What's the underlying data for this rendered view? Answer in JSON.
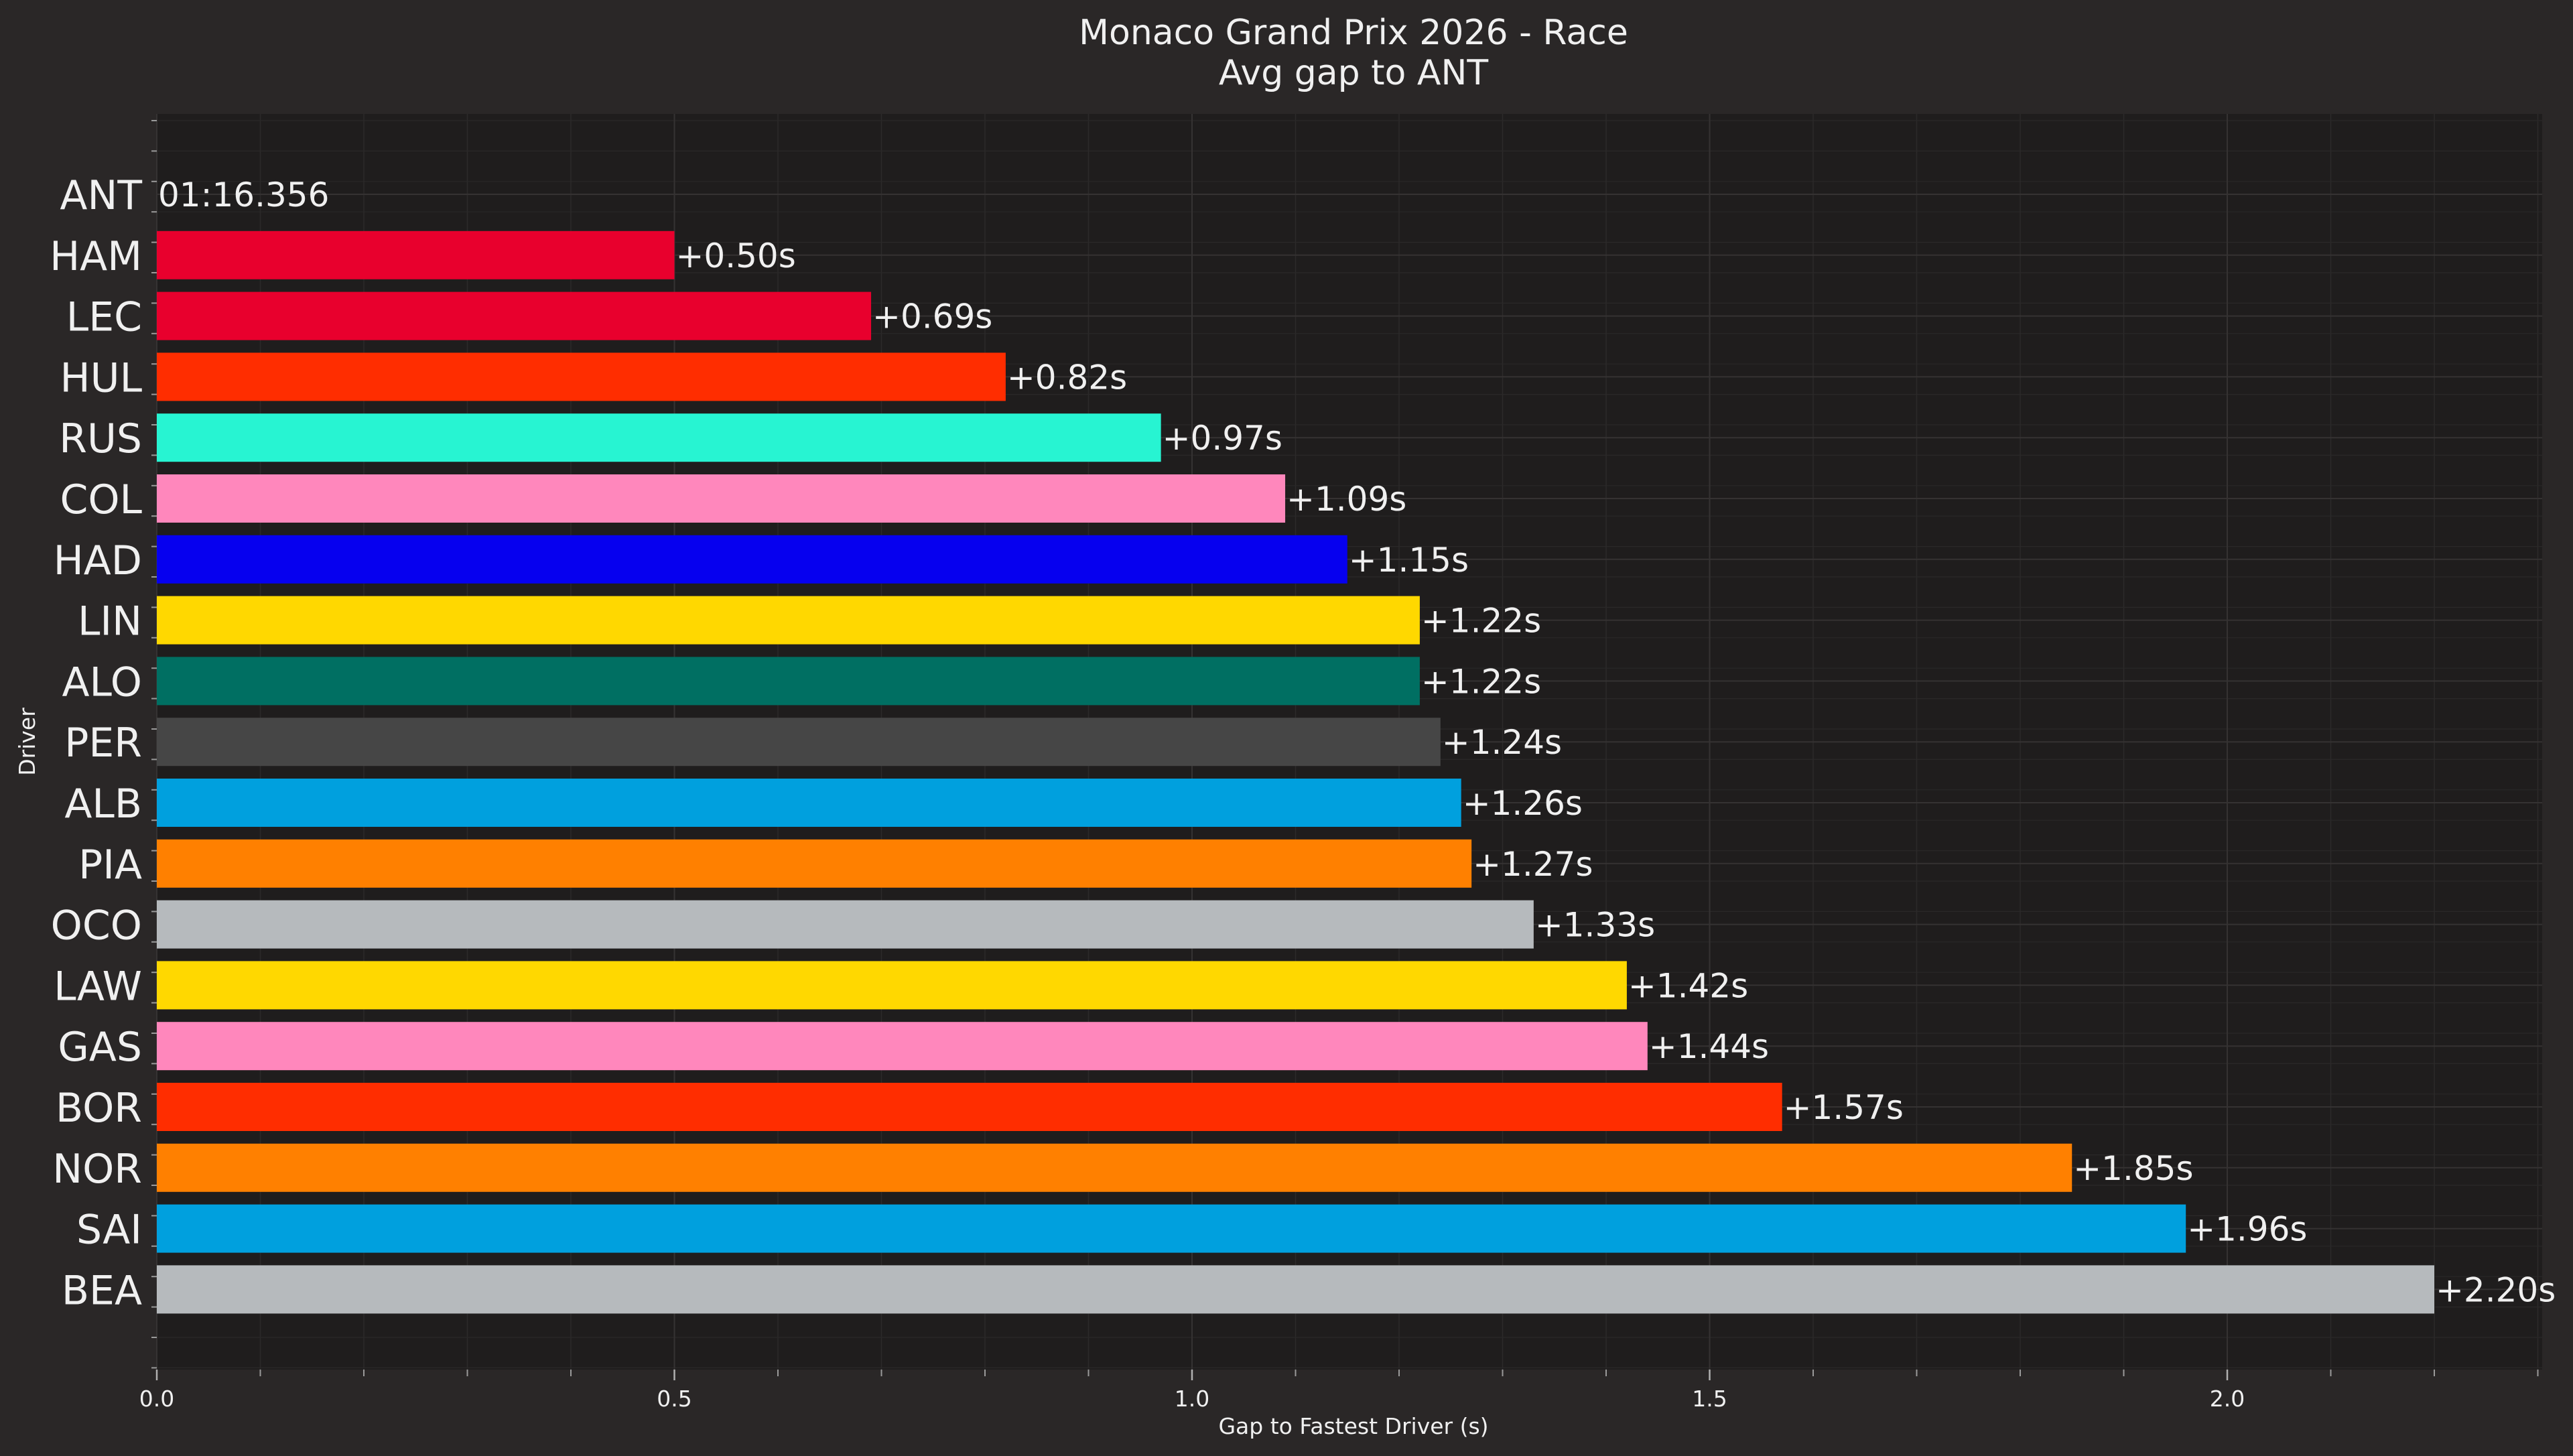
{
  "chart_data": {
    "type": "bar",
    "orientation": "horizontal",
    "title": "Monaco Grand Prix 2026 - Race",
    "subtitle": "Avg gap to ANT",
    "xlabel": "Gap to Fastest Driver (s)",
    "ylabel": "Driver",
    "xlim": [
      0,
      2.31
    ],
    "xticks": [
      "0.0",
      "0.5",
      "1.0",
      "1.5",
      "2.0"
    ],
    "grid": true,
    "categories": [
      "ANT",
      "HAM",
      "LEC",
      "HUL",
      "RUS",
      "COL",
      "HAD",
      "LIN",
      "ALO",
      "PER",
      "ALB",
      "PIA",
      "OCO",
      "LAW",
      "GAS",
      "BOR",
      "NOR",
      "SAI",
      "BEA"
    ],
    "values": [
      0.0,
      0.5,
      0.69,
      0.82,
      0.97,
      1.09,
      1.15,
      1.22,
      1.22,
      1.24,
      1.26,
      1.27,
      1.33,
      1.42,
      1.44,
      1.57,
      1.85,
      1.96,
      2.2
    ],
    "labels": [
      "01:16.356",
      "+0.50s",
      "+0.69s",
      "+0.82s",
      "+0.97s",
      "+1.09s",
      "+1.15s",
      "+1.22s",
      "+1.22s",
      "+1.24s",
      "+1.26s",
      "+1.27s",
      "+1.33s",
      "+1.42s",
      "+1.44s",
      "+1.57s",
      "+1.85s",
      "+1.96s",
      "+2.20s"
    ],
    "colors": [
      "#27f4d2",
      "#e8002d",
      "#e8002d",
      "#ff2d00",
      "#27f4d2",
      "#ff87bc",
      "#0600ef",
      "#ffd800",
      "#006f62",
      "#464646",
      "#00a0de",
      "#ff8000",
      "#b6babd",
      "#ffd800",
      "#ff87bc",
      "#ff2d00",
      "#ff8000",
      "#00a0de",
      "#b6babd"
    ]
  }
}
